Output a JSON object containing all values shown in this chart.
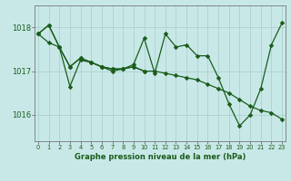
{
  "title": "Graphe pression niveau de la mer (hPa)",
  "bg": "#c8e8e8",
  "grid_color": "#b0d4d0",
  "lc": "#1a5c1a",
  "ylim": [
    1015.4,
    1018.5
  ],
  "xlim": [
    -0.3,
    23.3
  ],
  "yticks": [
    1016,
    1017,
    1018
  ],
  "xticks": [
    0,
    1,
    2,
    3,
    4,
    5,
    6,
    7,
    8,
    9,
    10,
    11,
    12,
    13,
    14,
    15,
    16,
    17,
    18,
    19,
    20,
    21,
    22,
    23
  ],
  "line1_x": [
    0,
    1,
    2,
    3,
    4,
    5,
    6,
    7,
    8,
    9,
    10,
    11,
    12,
    13,
    14,
    15,
    16,
    17,
    18,
    19,
    20,
    21,
    22,
    23
  ],
  "line1_y": [
    1017.85,
    1018.05,
    1017.55,
    1016.65,
    1017.25,
    1017.2,
    1017.1,
    1017.0,
    1017.05,
    1017.15,
    1017.75,
    1016.95,
    1017.85,
    1017.55,
    1017.6,
    1017.35,
    1017.35,
    1016.85,
    1016.25,
    1015.75,
    1016.0,
    1016.6,
    1017.6,
    1018.1
  ],
  "line2_x": [
    0,
    1,
    2,
    3,
    4,
    5,
    6,
    7,
    8,
    9,
    10,
    11,
    12,
    13,
    14,
    15,
    16,
    17,
    18,
    19,
    20,
    21,
    22,
    23
  ],
  "line2_y": [
    1017.85,
    1017.65,
    1017.55,
    1017.1,
    1017.3,
    1017.2,
    1017.1,
    1017.05,
    1017.05,
    1017.1,
    1017.0,
    1017.0,
    1016.95,
    1016.9,
    1016.85,
    1016.8,
    1016.7,
    1016.6,
    1016.5,
    1016.35,
    1016.2,
    1016.1,
    1016.05,
    1015.9
  ],
  "line3_x": [
    0,
    1,
    2,
    3,
    4,
    5,
    6,
    7,
    8,
    9,
    10
  ],
  "line3_y": [
    1017.85,
    1018.05,
    1017.55,
    1017.1,
    1017.3,
    1017.2,
    1017.1,
    1017.05,
    1017.05,
    1017.1,
    1017.0
  ]
}
